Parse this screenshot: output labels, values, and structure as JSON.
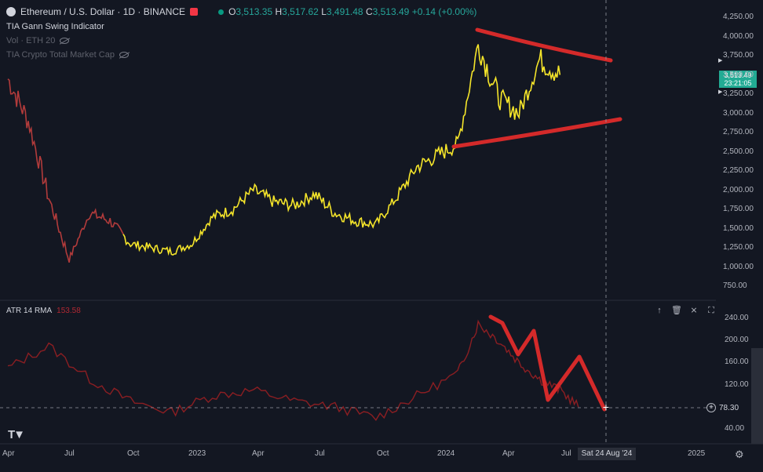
{
  "header": {
    "symbol": "Ethereum / U.S. Dollar · 1D · BINANCE",
    "ohlc": {
      "o_label": "O",
      "o": "3,513.35",
      "h_label": "H",
      "h": "3,517.62",
      "l_label": "L",
      "l": "3,491.48",
      "c_label": "C",
      "c": "3,513.49",
      "change": "+0.14 (+0.00%)"
    }
  },
  "indicators": {
    "gann": "TIA Gann Swing Indicator",
    "vol_label": "Vol · ETH 20",
    "crypto_cap": "TIA Crypto Total Market Cap",
    "atr_label": "ATR 14 RMA",
    "atr_value": "153.58"
  },
  "price_tag": {
    "price": "3,513.49",
    "countdown": "23:21:05"
  },
  "atr_tag": "78.30",
  "crosshair_date": "Sat 24 Aug '24",
  "price_axis": [
    "4,250.00",
    "4,000.00",
    "3,750.00",
    "3,500.00",
    "3,250.00",
    "3,000.00",
    "2,750.00",
    "2,500.00",
    "2,250.00",
    "2,000.00",
    "1,750.00",
    "1,500.00",
    "1,250.00",
    "1,000.00",
    "750.00"
  ],
  "atr_axis": [
    "240.00",
    "200.00",
    "160.00",
    "120.00",
    "80.00",
    "40.00"
  ],
  "time_axis": [
    "Apr",
    "Jul",
    "Oct",
    "2023",
    "Apr",
    "Jul",
    "Oct",
    "2024",
    "Apr",
    "Jul",
    "2025"
  ],
  "chart_data": [
    {
      "type": "line",
      "x": [
        "2022-04",
        "2022-05",
        "2022-06",
        "2022-07",
        "2022-08",
        "2022-09",
        "2022-10",
        "2022-11",
        "2022-12",
        "2023-01",
        "2023-02",
        "2023-03",
        "2023-04",
        "2023-05",
        "2023-06",
        "2023-07",
        "2023-08",
        "2023-09",
        "2023-10",
        "2023-11",
        "2023-12",
        "2024-01",
        "2024-02",
        "2024-03",
        "2024-04",
        "2024-05",
        "2024-06",
        "2024-07"
      ],
      "series": [
        {
          "values": [
            3450,
            2900,
            1900,
            1100,
            1700,
            1600,
            1300,
            1250,
            1200,
            1300,
            1650,
            1750,
            2000,
            1850,
            1800,
            1950,
            1700,
            1600,
            1550,
            1900,
            2300,
            2450,
            2600,
            3900,
            3200,
            3000,
            3700,
            3500
          ]
        }
      ],
      "ylim": [
        750,
        4250
      ]
    },
    {
      "type": "line",
      "x": [
        "2022-04",
        "2022-06",
        "2022-08",
        "2022-10",
        "2022-12",
        "2023-02",
        "2023-04",
        "2023-06",
        "2023-08",
        "2023-10",
        "2023-12",
        "2024-02",
        "2024-03",
        "2024-04",
        "2024-05",
        "2024-06",
        "2024-07",
        "2024-08"
      ],
      "series": [
        {
          "values": [
            150,
            190,
            130,
            90,
            70,
            100,
            110,
            90,
            80,
            60,
            100,
            140,
            230,
            200,
            160,
            130,
            110,
            78.3
          ]
        }
      ],
      "ylim": [
        20,
        250
      ]
    }
  ],
  "colors": {
    "background": "#131722",
    "price_line": "#f5e52a",
    "early_candles": "#b23b3b",
    "trend_lines": "#d42a2a",
    "atr_line": "#8b1e22"
  }
}
